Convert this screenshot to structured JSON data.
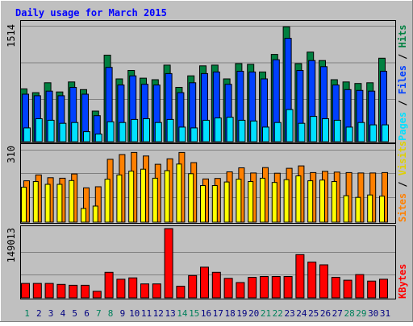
{
  "title": "Daily usage for March 2015",
  "colors": {
    "background": "#c0c0c0",
    "title": "#0000ff",
    "hits": "#008040",
    "files": "#0040ff",
    "pages": "#00e0ff",
    "visits": "#ffff00",
    "sites": "#ff8000",
    "kbytes": "#ff0000",
    "weekend_day": "#00805c",
    "weekday": "#000080"
  },
  "legend": {
    "pages": "Pages",
    "files": "Files",
    "hits": "Hits",
    "sites": "Sites",
    "visits": "Visits",
    "kbytes": "KBytes",
    "sep1": " / ",
    "sep2": " / "
  },
  "chart_data": [
    {
      "type": "bar",
      "panel": "hits-files-pages",
      "ymax_label": "1514",
      "ylim": [
        0,
        1514
      ],
      "categories": [
        "1",
        "2",
        "3",
        "4",
        "5",
        "6",
        "7",
        "8",
        "9",
        "10",
        "11",
        "12",
        "13",
        "14",
        "15",
        "16",
        "17",
        "18",
        "19",
        "20",
        "21",
        "22",
        "23",
        "24",
        "25",
        "26",
        "27",
        "28",
        "29",
        "30",
        "31"
      ],
      "weekend": [
        1,
        7,
        8,
        14,
        15,
        21,
        22,
        28,
        29
      ],
      "series": [
        {
          "name": "Hits",
          "values": [
            690,
            640,
            770,
            650,
            780,
            680,
            400,
            1130,
            820,
            930,
            830,
            810,
            1000,
            710,
            860,
            990,
            1000,
            820,
            1020,
            1010,
            910,
            1140,
            1500,
            1020,
            1170,
            1060,
            810,
            780,
            760,
            770,
            1090
          ]
        },
        {
          "name": "Files",
          "values": [
            620,
            600,
            660,
            600,
            710,
            620,
            340,
            970,
            740,
            860,
            750,
            740,
            890,
            640,
            770,
            890,
            910,
            750,
            920,
            910,
            820,
            1070,
            1350,
            930,
            1060,
            980,
            740,
            680,
            670,
            660,
            920
          ]
        },
        {
          "name": "Pages",
          "values": [
            180,
            300,
            280,
            240,
            250,
            130,
            100,
            260,
            250,
            290,
            300,
            250,
            290,
            190,
            180,
            280,
            310,
            320,
            280,
            270,
            190,
            250,
            420,
            240,
            330,
            300,
            280,
            190,
            250,
            220,
            220
          ]
        }
      ]
    },
    {
      "type": "bar",
      "panel": "sites-visits",
      "ymax_label": "310",
      "ylim": [
        0,
        310
      ],
      "categories": [
        "1",
        "2",
        "3",
        "4",
        "5",
        "6",
        "7",
        "8",
        "9",
        "10",
        "11",
        "12",
        "13",
        "14",
        "15",
        "16",
        "17",
        "18",
        "19",
        "20",
        "21",
        "22",
        "23",
        "24",
        "25",
        "26",
        "27",
        "28",
        "29",
        "30",
        "31"
      ],
      "series": [
        {
          "name": "Sites",
          "values": [
            175,
            200,
            188,
            186,
            204,
            145,
            150,
            266,
            286,
            295,
            280,
            245,
            268,
            295,
            252,
            183,
            185,
            213,
            230,
            208,
            231,
            207,
            228,
            238,
            210,
            215,
            212,
            210,
            208,
            208,
            210
          ]
        },
        {
          "name": "Visits",
          "values": [
            148,
            172,
            160,
            160,
            176,
            58,
            68,
            182,
            200,
            216,
            224,
            186,
            218,
            246,
            205,
            155,
            155,
            170,
            182,
            172,
            186,
            168,
            180,
            196,
            175,
            178,
            172,
            112,
            105,
            115,
            110
          ]
        }
      ]
    },
    {
      "type": "bar",
      "panel": "kbytes",
      "ymax_label": "149013",
      "ylim": [
        0,
        149013
      ],
      "categories": [
        "1",
        "2",
        "3",
        "4",
        "5",
        "6",
        "7",
        "8",
        "9",
        "10",
        "11",
        "12",
        "13",
        "14",
        "15",
        "16",
        "17",
        "18",
        "19",
        "20",
        "21",
        "22",
        "23",
        "24",
        "25",
        "26",
        "27",
        "28",
        "29",
        "30",
        "31"
      ],
      "series": [
        {
          "name": "KBytes",
          "values": [
            31000,
            31000,
            31000,
            29000,
            27000,
            27000,
            14000,
            55000,
            40000,
            43000,
            30000,
            30000,
            149000,
            25000,
            48000,
            66000,
            55000,
            42000,
            33000,
            44000,
            46000,
            46000,
            46000,
            93000,
            77000,
            71000,
            44000,
            38000,
            50000,
            36000,
            40000
          ]
        }
      ]
    }
  ]
}
